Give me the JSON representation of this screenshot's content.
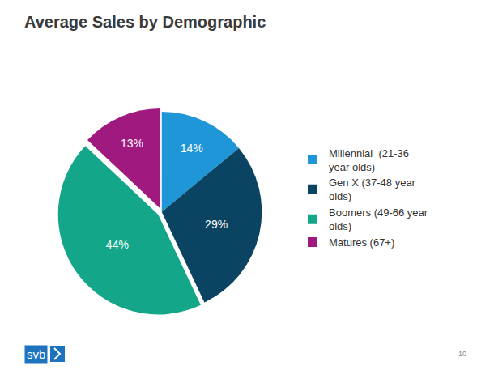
{
  "chart_data": {
    "type": "pie",
    "title": "Average Sales by Demographic",
    "categories": [
      "Millennial  (21-36 year olds)",
      "Gen X (37-48 year olds)",
      "Boomers (49-66 year olds)",
      "Matures (67+)"
    ],
    "values": [
      14,
      29,
      44,
      13
    ],
    "value_labels": [
      "14%",
      "29%",
      "44%",
      "13%"
    ],
    "colors": [
      "#1f96d8",
      "#0b4462",
      "#14a689",
      "#a0197f"
    ],
    "data_labels": true,
    "legend": "right",
    "annotations": [
      "svb",
      "10"
    ]
  }
}
